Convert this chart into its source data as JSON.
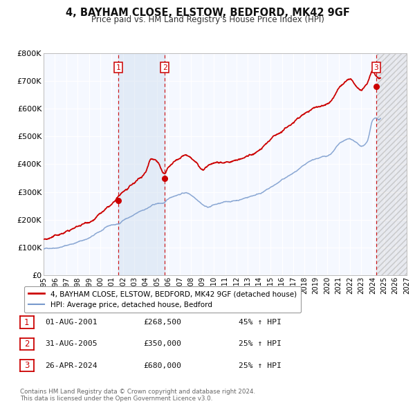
{
  "title": "4, BAYHAM CLOSE, ELSTOW, BEDFORD, MK42 9GF",
  "subtitle": "Price paid vs. HM Land Registry's House Price Index (HPI)",
  "ylim": [
    0,
    800000
  ],
  "xlim": [
    1995.0,
    2027.0
  ],
  "yticks": [
    0,
    100000,
    200000,
    300000,
    400000,
    500000,
    600000,
    700000,
    800000
  ],
  "ytick_labels": [
    "£0",
    "£100K",
    "£200K",
    "£300K",
    "£400K",
    "£500K",
    "£600K",
    "£700K",
    "£800K"
  ],
  "xticks": [
    1995,
    1996,
    1997,
    1998,
    1999,
    2000,
    2001,
    2002,
    2003,
    2004,
    2005,
    2006,
    2007,
    2008,
    2009,
    2010,
    2011,
    2012,
    2013,
    2014,
    2015,
    2016,
    2017,
    2018,
    2019,
    2020,
    2021,
    2022,
    2023,
    2024,
    2025,
    2026,
    2027
  ],
  "background_color": "#f5f8ff",
  "plot_bg_color": "#f5f8ff",
  "grid_color": "#ffffff",
  "red_line_color": "#cc0000",
  "blue_line_color": "#7799cc",
  "sale_marker_color": "#cc0000",
  "vline_color": "#cc0000",
  "shade_color": "#ccddef",
  "transactions": [
    {
      "label": "1",
      "date": 2001.583,
      "price": 268500,
      "date_str": "01-AUG-2001",
      "price_str": "£268,500",
      "pct_str": "45% ↑ HPI"
    },
    {
      "label": "2",
      "date": 2005.667,
      "price": 350000,
      "date_str": "31-AUG-2005",
      "price_str": "£350,000",
      "pct_str": "25% ↑ HPI"
    },
    {
      "label": "3",
      "date": 2024.32,
      "price": 680000,
      "date_str": "26-APR-2024",
      "price_str": "£680,000",
      "pct_str": "25% ↑ HPI"
    }
  ],
  "legend_entries": [
    {
      "label": "4, BAYHAM CLOSE, ELSTOW, BEDFORD, MK42 9GF (detached house)",
      "color": "#cc0000",
      "lw": 2.0
    },
    {
      "label": "HPI: Average price, detached house, Bedford",
      "color": "#7799cc",
      "lw": 1.5
    }
  ],
  "footer": "Contains HM Land Registry data © Crown copyright and database right 2024.\nThis data is licensed under the Open Government Licence v3.0.",
  "table_rows": [
    {
      "num": "1",
      "date": "01-AUG-2001",
      "price": "£268,500",
      "change": "45% ↑ HPI"
    },
    {
      "num": "2",
      "date": "31-AUG-2005",
      "price": "£350,000",
      "change": "25% ↑ HPI"
    },
    {
      "num": "3",
      "date": "26-APR-2024",
      "price": "£680,000",
      "change": "25% ↑ HPI"
    }
  ]
}
